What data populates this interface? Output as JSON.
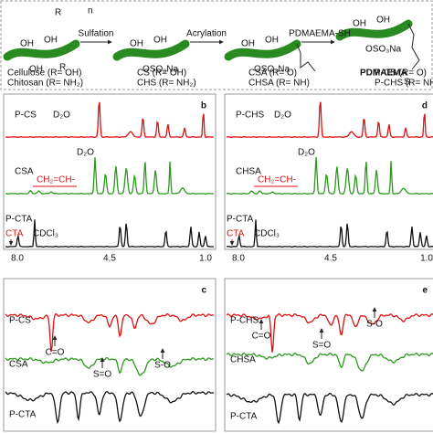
{
  "scheme": {
    "steps": [
      "Sulfation",
      "Acrylation",
      "PDMAEMA-SH"
    ],
    "compounds": [
      {
        "lines": [
          "Cellulose (R= OH)",
          "Chitosan (R= NH₂)"
        ]
      },
      {
        "lines": [
          "CS (R= OH)",
          "CHS (R= NH₂)"
        ]
      },
      {
        "lines": [
          "CSA (R= O)",
          "CHSA (R= NH)"
        ]
      },
      {
        "lines": [
          "P-CS (R= O)",
          "P-CHS (R= NH)"
        ]
      }
    ],
    "groups": {
      "hydroxyl": "OH",
      "r": "R",
      "sulfate": "OSO₃Na",
      "polymer": "PDMAEMA",
      "sulfur": "S",
      "repeat": "n"
    }
  },
  "nmr_panels": [
    {
      "letter": "b",
      "spectra": [
        {
          "name": "P-CS",
          "peak_label": "D₂O"
        },
        {
          "name": "CSA",
          "peak_label": "D₂O",
          "annotation": "CH₂=CH-"
        },
        {
          "name": "P-CTA",
          "annotation": "CTA",
          "peak_label": "CDCl₃"
        }
      ],
      "axis_labels": [
        "8.0",
        "4.5",
        "1.0"
      ]
    },
    {
      "letter": "d",
      "spectra": [
        {
          "name": "P-CHS",
          "peak_label": "D₂O"
        },
        {
          "name": "CHSA",
          "peak_label": "D₂O",
          "annotation": "CH₂=CH-"
        },
        {
          "name": "P-CTA",
          "annotation": "CTA",
          "peak_label": "CDCl₃"
        }
      ],
      "axis_labels": [
        "8.0",
        "4.5",
        "1.0"
      ]
    }
  ],
  "ftir_panels": [
    {
      "letter": "c",
      "spectra": [
        "P-CS",
        "CSA",
        "P-CTA"
      ],
      "bands": [
        "C=O",
        "S=O",
        "S-O"
      ]
    },
    {
      "letter": "e",
      "spectra": [
        "P-CHS",
        "CHSA",
        "P-CTA"
      ],
      "bands": [
        "C=O",
        "S=O",
        "S-O"
      ]
    }
  ]
}
